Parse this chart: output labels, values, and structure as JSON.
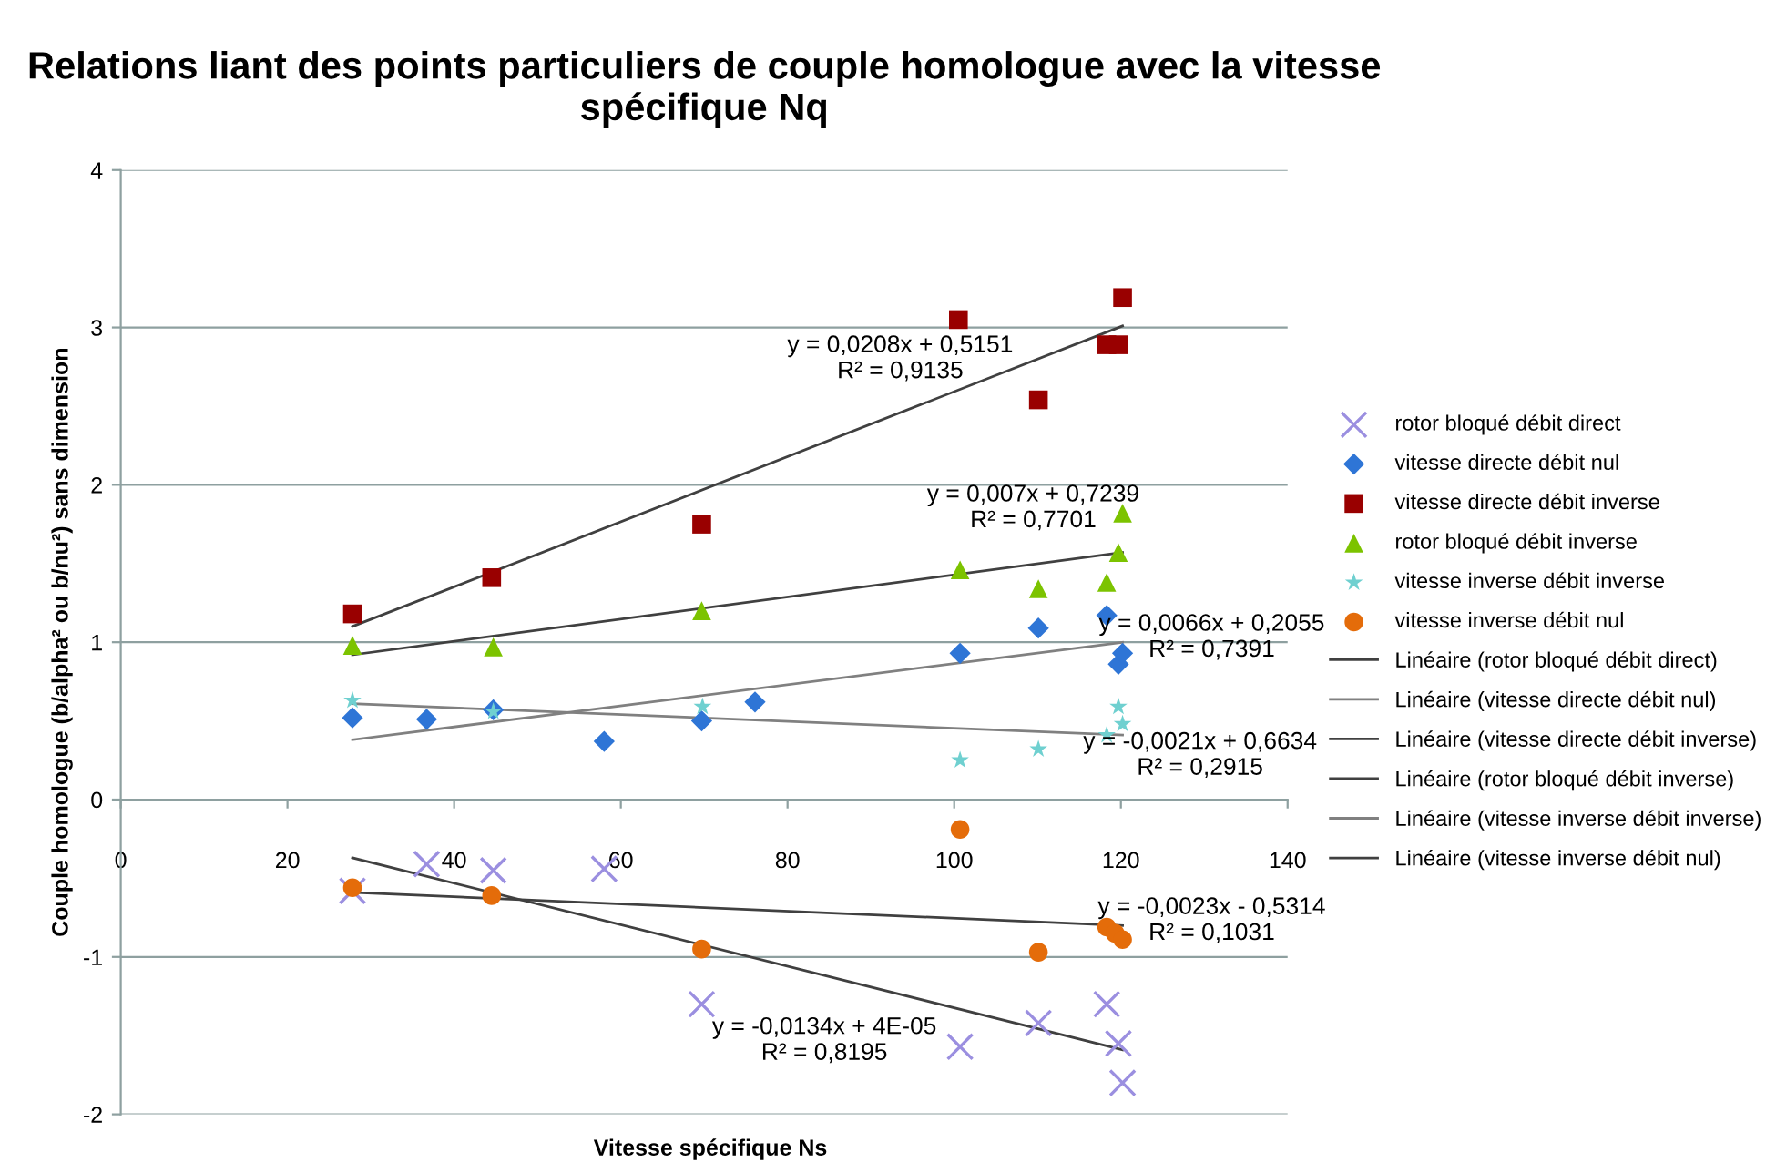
{
  "chart_data": {
    "type": "scatter",
    "title": "Relations liant des points particuliers de couple homologue avec la vitesse spécifique Nq",
    "xlabel": "Vitesse spécifique Ns",
    "ylabel": "Couple homologue (b/alpha² ou b/nu²) sans dimension",
    "xlim": [
      0,
      140
    ],
    "xticks": [
      0,
      20,
      40,
      60,
      80,
      100,
      120,
      140
    ],
    "ylim": [
      -2,
      4
    ],
    "yticks": [
      -2,
      -1,
      0,
      1,
      2,
      3,
      4
    ],
    "grid": "y",
    "legend": "right",
    "series": [
      {
        "name": "rotor bloqué débit direct",
        "marker": "cross",
        "color": "#9b8fe0",
        "x": [
          27.8,
          36.7,
          44.7,
          58,
          69.7,
          100.7,
          110.1,
          118.3,
          119.7,
          120.2
        ],
        "values": [
          -0.58,
          -0.41,
          -0.45,
          -0.44,
          -1.3,
          -1.57,
          -1.42,
          -1.3,
          -1.55,
          -1.8
        ]
      },
      {
        "name": "vitesse directe débit nul",
        "marker": "diamond",
        "color": "#2e75d6",
        "x": [
          27.8,
          36.7,
          44.7,
          58,
          69.7,
          76.1,
          100.7,
          110.1,
          118.3,
          119.7,
          120.2
        ],
        "values": [
          0.52,
          0.51,
          0.57,
          0.37,
          0.5,
          0.62,
          0.93,
          1.09,
          1.17,
          0.86,
          0.93
        ]
      },
      {
        "name": "vitesse directe débit inverse",
        "marker": "square",
        "color": "#990000",
        "x": [
          27.8,
          44.5,
          69.7,
          100.5,
          110.1,
          118.3,
          119.7,
          120.2
        ],
        "values": [
          1.18,
          1.41,
          1.75,
          3.05,
          2.54,
          2.89,
          2.89,
          3.19
        ]
      },
      {
        "name": "rotor bloqué débit inverse",
        "marker": "triangle",
        "color": "#7cc300",
        "x": [
          27.8,
          44.7,
          69.7,
          100.7,
          110.1,
          118.3,
          119.7,
          120.2
        ],
        "values": [
          0.98,
          0.97,
          1.2,
          1.46,
          1.34,
          1.38,
          1.57,
          1.82
        ]
      },
      {
        "name": "vitesse inverse débit inverse",
        "marker": "star",
        "color": "#6fd0d0",
        "x": [
          27.8,
          44.7,
          69.8,
          100.7,
          110.1,
          118.3,
          119.7,
          120.2
        ],
        "values": [
          0.63,
          0.56,
          0.59,
          0.25,
          0.32,
          0.41,
          0.59,
          0.48
        ]
      },
      {
        "name": "vitesse inverse débit nul",
        "marker": "circle",
        "color": "#e46c0a",
        "x": [
          27.8,
          44.5,
          69.7,
          100.7,
          110.1,
          118.3,
          119.3,
          120.2
        ],
        "values": [
          -0.56,
          -0.61,
          -0.95,
          -0.19,
          -0.97,
          -0.81,
          -0.85,
          -0.89
        ]
      },
      {
        "name": "Linéaire (rotor bloqué débit direct)",
        "type": "line",
        "color": "#404040",
        "x": [
          27.8,
          120.2
        ],
        "values": [
          -0.37,
          -1.59
        ]
      },
      {
        "name": "Linéaire (vitesse directe débit nul)",
        "type": "line",
        "color": "#808080",
        "x": [
          27.8,
          120.2
        ],
        "values": [
          0.38,
          1.0
        ]
      },
      {
        "name": "Linéaire (vitesse directe débit inverse)",
        "type": "line",
        "color": "#404040",
        "x": [
          27.8,
          120.2
        ],
        "values": [
          1.1,
          3.01
        ]
      },
      {
        "name": "Linéaire (rotor bloqué débit inverse)",
        "type": "line",
        "color": "#404040",
        "x": [
          27.8,
          120.2
        ],
        "values": [
          0.92,
          1.57
        ]
      },
      {
        "name": "Linéaire (vitesse inverse débit inverse)",
        "type": "line",
        "color": "#808080",
        "x": [
          27.8,
          120.2
        ],
        "values": [
          0.61,
          0.41
        ]
      },
      {
        "name": "Linéaire (vitesse inverse débit nul)",
        "type": "line",
        "color": "#404040",
        "x": [
          27.8,
          120.2
        ],
        "values": [
          -0.59,
          -0.8
        ]
      }
    ],
    "annotations": [
      "y = 0,0208x + 0,5151\nR² = 0,9135",
      "y = 0,007x + 0,7239\nR² = 0,7701",
      "y = 0,0066x + 0,2055\nR² = 0,7391",
      "y = -0,0021x + 0,6634\nR² = 0,2915",
      "y = -0,0023x - 0,5314\nR² = 0,1031",
      "y = -0,0134x + 4E-05\nR² = 0,8195"
    ]
  }
}
